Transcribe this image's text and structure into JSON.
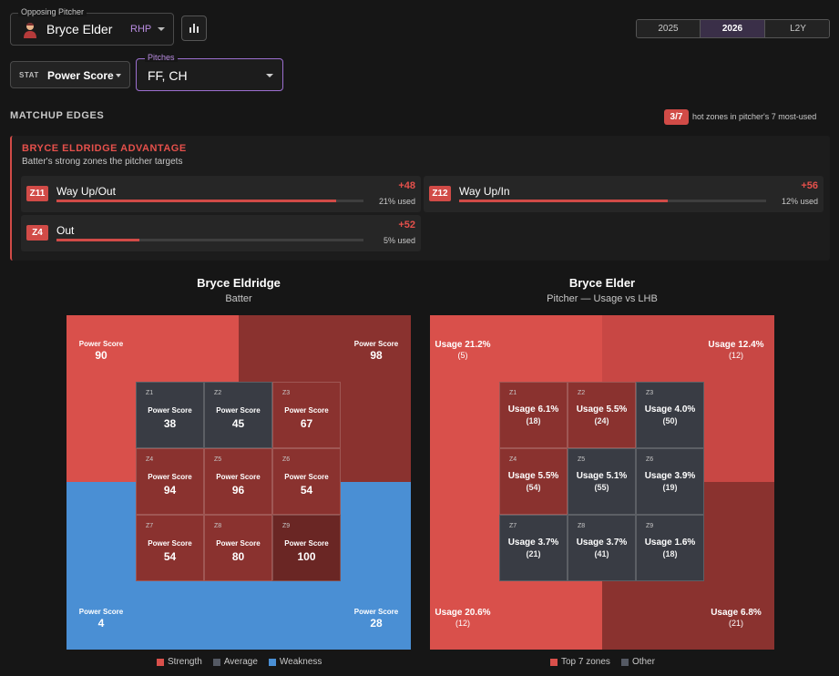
{
  "pitcher": {
    "legend": "Opposing Pitcher",
    "name": "Bryce Elder",
    "hand": "RHP"
  },
  "icons": {
    "avatar": "player-avatar",
    "chart": "bar-chart-icon",
    "caret": "chevron-down-icon"
  },
  "seasons": [
    {
      "label": "2025",
      "active": false
    },
    {
      "label": "2026",
      "active": true
    },
    {
      "label": "L2Y",
      "active": false
    }
  ],
  "stat": {
    "label": "STAT",
    "value": "Power Score"
  },
  "pitches": {
    "legend": "Pitches",
    "value": "FF, CH"
  },
  "matchup": {
    "title": "MATCHUP EDGES",
    "hot_badge": "3/7",
    "hot_text": "hot zones in pitcher's 7 most-used"
  },
  "advantage": {
    "title": "BRYCE ELDRIDGE ADVANTAGE",
    "subtitle": "Batter's strong zones the pitcher targets",
    "cards": [
      {
        "zone": "Z11",
        "label": "Way Up/Out",
        "delta": "+48",
        "used": "21% used",
        "bar": 0.91
      },
      {
        "zone": "Z12",
        "label": "Way Up/In",
        "delta": "+56",
        "used": "12% used",
        "bar": 0.68
      },
      {
        "zone": "Z4",
        "label": "Out",
        "delta": "+52",
        "used": "5% used",
        "bar": 0.27
      }
    ]
  },
  "colors": {
    "strength": "#d9504b",
    "strength_dark": "#8a322f",
    "average": "#393c44",
    "weakness": "#4a8fd4",
    "accent": "#9c6fd0"
  },
  "batter_chart": {
    "title": "Bryce Eldridge",
    "subtitle": "Batter",
    "outer": [
      {
        "label": "Power Score",
        "value": "90",
        "tone": "strength"
      },
      {
        "label": "Power Score",
        "value": "98",
        "tone": "strength_dark"
      },
      {
        "label": "Power Score",
        "value": "4",
        "tone": "weakness"
      },
      {
        "label": "Power Score",
        "value": "28",
        "tone": "weakness"
      }
    ],
    "zones": [
      {
        "id": "Z1",
        "label": "Power Score",
        "value": "38",
        "tone": "average"
      },
      {
        "id": "Z2",
        "label": "Power Score",
        "value": "45",
        "tone": "average"
      },
      {
        "id": "Z3",
        "label": "Power Score",
        "value": "67",
        "tone": "strength_dark"
      },
      {
        "id": "Z4",
        "label": "Power Score",
        "value": "94",
        "tone": "strength_dark"
      },
      {
        "id": "Z5",
        "label": "Power Score",
        "value": "96",
        "tone": "strength_dark"
      },
      {
        "id": "Z6",
        "label": "Power Score",
        "value": "54",
        "tone": "strength_dark"
      },
      {
        "id": "Z7",
        "label": "Power Score",
        "value": "54",
        "tone": "strength_dark"
      },
      {
        "id": "Z8",
        "label": "Power Score",
        "value": "80",
        "tone": "strength_dark"
      },
      {
        "id": "Z9",
        "label": "Power Score",
        "value": "100",
        "tone": "strength_darker"
      }
    ],
    "legend": [
      "Strength",
      "Average",
      "Weakness"
    ]
  },
  "pitcher_chart": {
    "title": "Bryce Elder",
    "subtitle": "Pitcher — Usage vs LHB",
    "outer": [
      {
        "label": "Usage 21.2%",
        "count": "(5)",
        "tone": "top"
      },
      {
        "label": "Usage 12.4%",
        "count": "(12)",
        "tone": "top"
      },
      {
        "label": "Usage 20.6%",
        "count": "(12)",
        "tone": "top"
      },
      {
        "label": "Usage 6.8%",
        "count": "(21)",
        "tone": "dark"
      }
    ],
    "zones": [
      {
        "id": "Z1",
        "label": "Usage 6.1%",
        "count": "(18)",
        "tone": "top"
      },
      {
        "id": "Z2",
        "label": "Usage 5.5%",
        "count": "(24)",
        "tone": "top"
      },
      {
        "id": "Z3",
        "label": "Usage 4.0%",
        "count": "(50)",
        "tone": "other"
      },
      {
        "id": "Z4",
        "label": "Usage 5.5%",
        "count": "(54)",
        "tone": "top"
      },
      {
        "id": "Z5",
        "label": "Usage 5.1%",
        "count": "(55)",
        "tone": "other"
      },
      {
        "id": "Z6",
        "label": "Usage 3.9%",
        "count": "(19)",
        "tone": "other"
      },
      {
        "id": "Z7",
        "label": "Usage 3.7%",
        "count": "(21)",
        "tone": "other"
      },
      {
        "id": "Z8",
        "label": "Usage 3.7%",
        "count": "(41)",
        "tone": "other"
      },
      {
        "id": "Z9",
        "label": "Usage 1.6%",
        "count": "(18)",
        "tone": "other"
      }
    ],
    "legend": [
      "Top 7 zones",
      "Other"
    ]
  }
}
